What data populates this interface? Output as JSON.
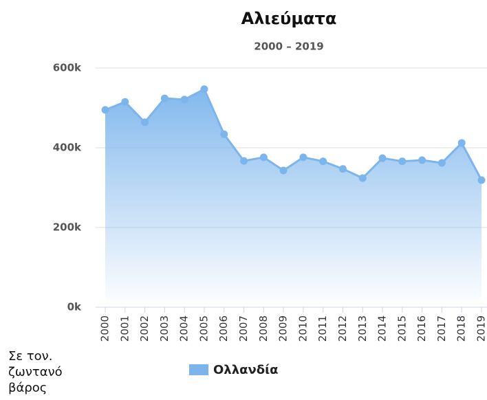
{
  "chart_data": {
    "type": "area",
    "title": "Αλιεύματα",
    "subtitle": "2000 – 2019",
    "y_axis_label": "Σε τον. ζωντανό βάρος",
    "categories": [
      "2000",
      "2001",
      "2002",
      "2003",
      "2004",
      "2005",
      "2006",
      "2007",
      "2008",
      "2009",
      "2010",
      "2011",
      "2012",
      "2013",
      "2014",
      "2015",
      "2016",
      "2017",
      "2018",
      "2019"
    ],
    "series": [
      {
        "name": "Ολλανδία",
        "color": "#7cb5ec",
        "values": [
          495000,
          515000,
          464000,
          524000,
          521000,
          547000,
          434000,
          367000,
          376000,
          343000,
          376000,
          366000,
          347000,
          324000,
          374000,
          366000,
          369000,
          362000,
          412000,
          319000
        ]
      }
    ],
    "ylim": [
      0,
      600000
    ],
    "yticks": [
      {
        "value": 0,
        "label": "0k"
      },
      {
        "value": 200000,
        "label": "200k"
      },
      {
        "value": 400000,
        "label": "400k"
      },
      {
        "value": 600000,
        "label": "600k"
      }
    ],
    "grid": true,
    "legend": "bottom"
  }
}
